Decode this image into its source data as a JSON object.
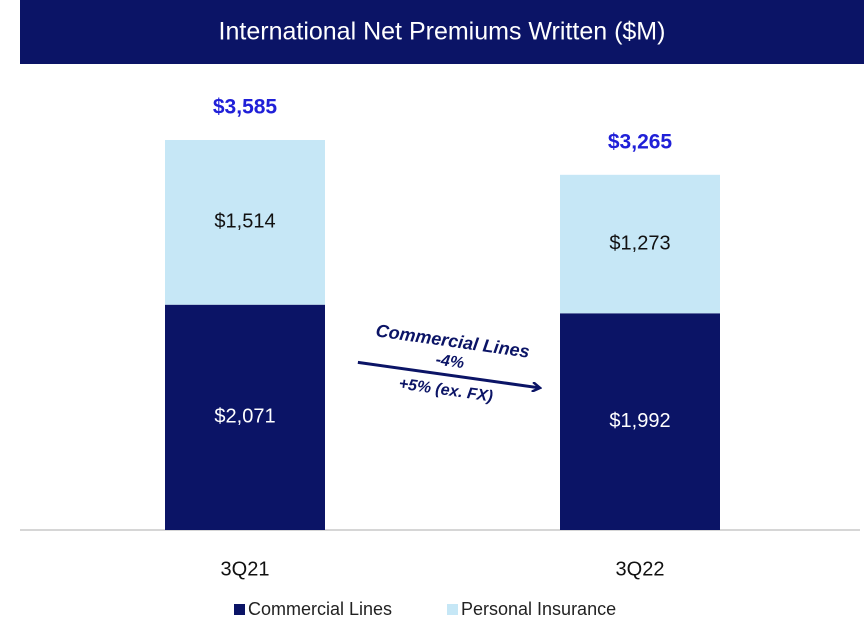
{
  "chart_data": {
    "type": "stacked_bar",
    "title": "International Net Premiums Written ($M)",
    "categories": [
      "3Q21",
      "3Q22"
    ],
    "series": [
      {
        "name": "Commercial Lines",
        "color": "#0b1466",
        "values": [
          2071,
          1992
        ],
        "value_labels": [
          "$2,071",
          "$1,992"
        ]
      },
      {
        "name": "Personal Insurance",
        "color": "#c6e7f6",
        "values": [
          1514,
          1273
        ],
        "value_labels": [
          "$1,514",
          "$1,273"
        ]
      }
    ],
    "totals": [
      3585,
      3265
    ],
    "total_labels": [
      "$3,585",
      "$3,265"
    ],
    "annotation": [
      "Commercial Lines",
      "-4%",
      "+5% (ex. FX)"
    ],
    "legend": "bottom"
  }
}
